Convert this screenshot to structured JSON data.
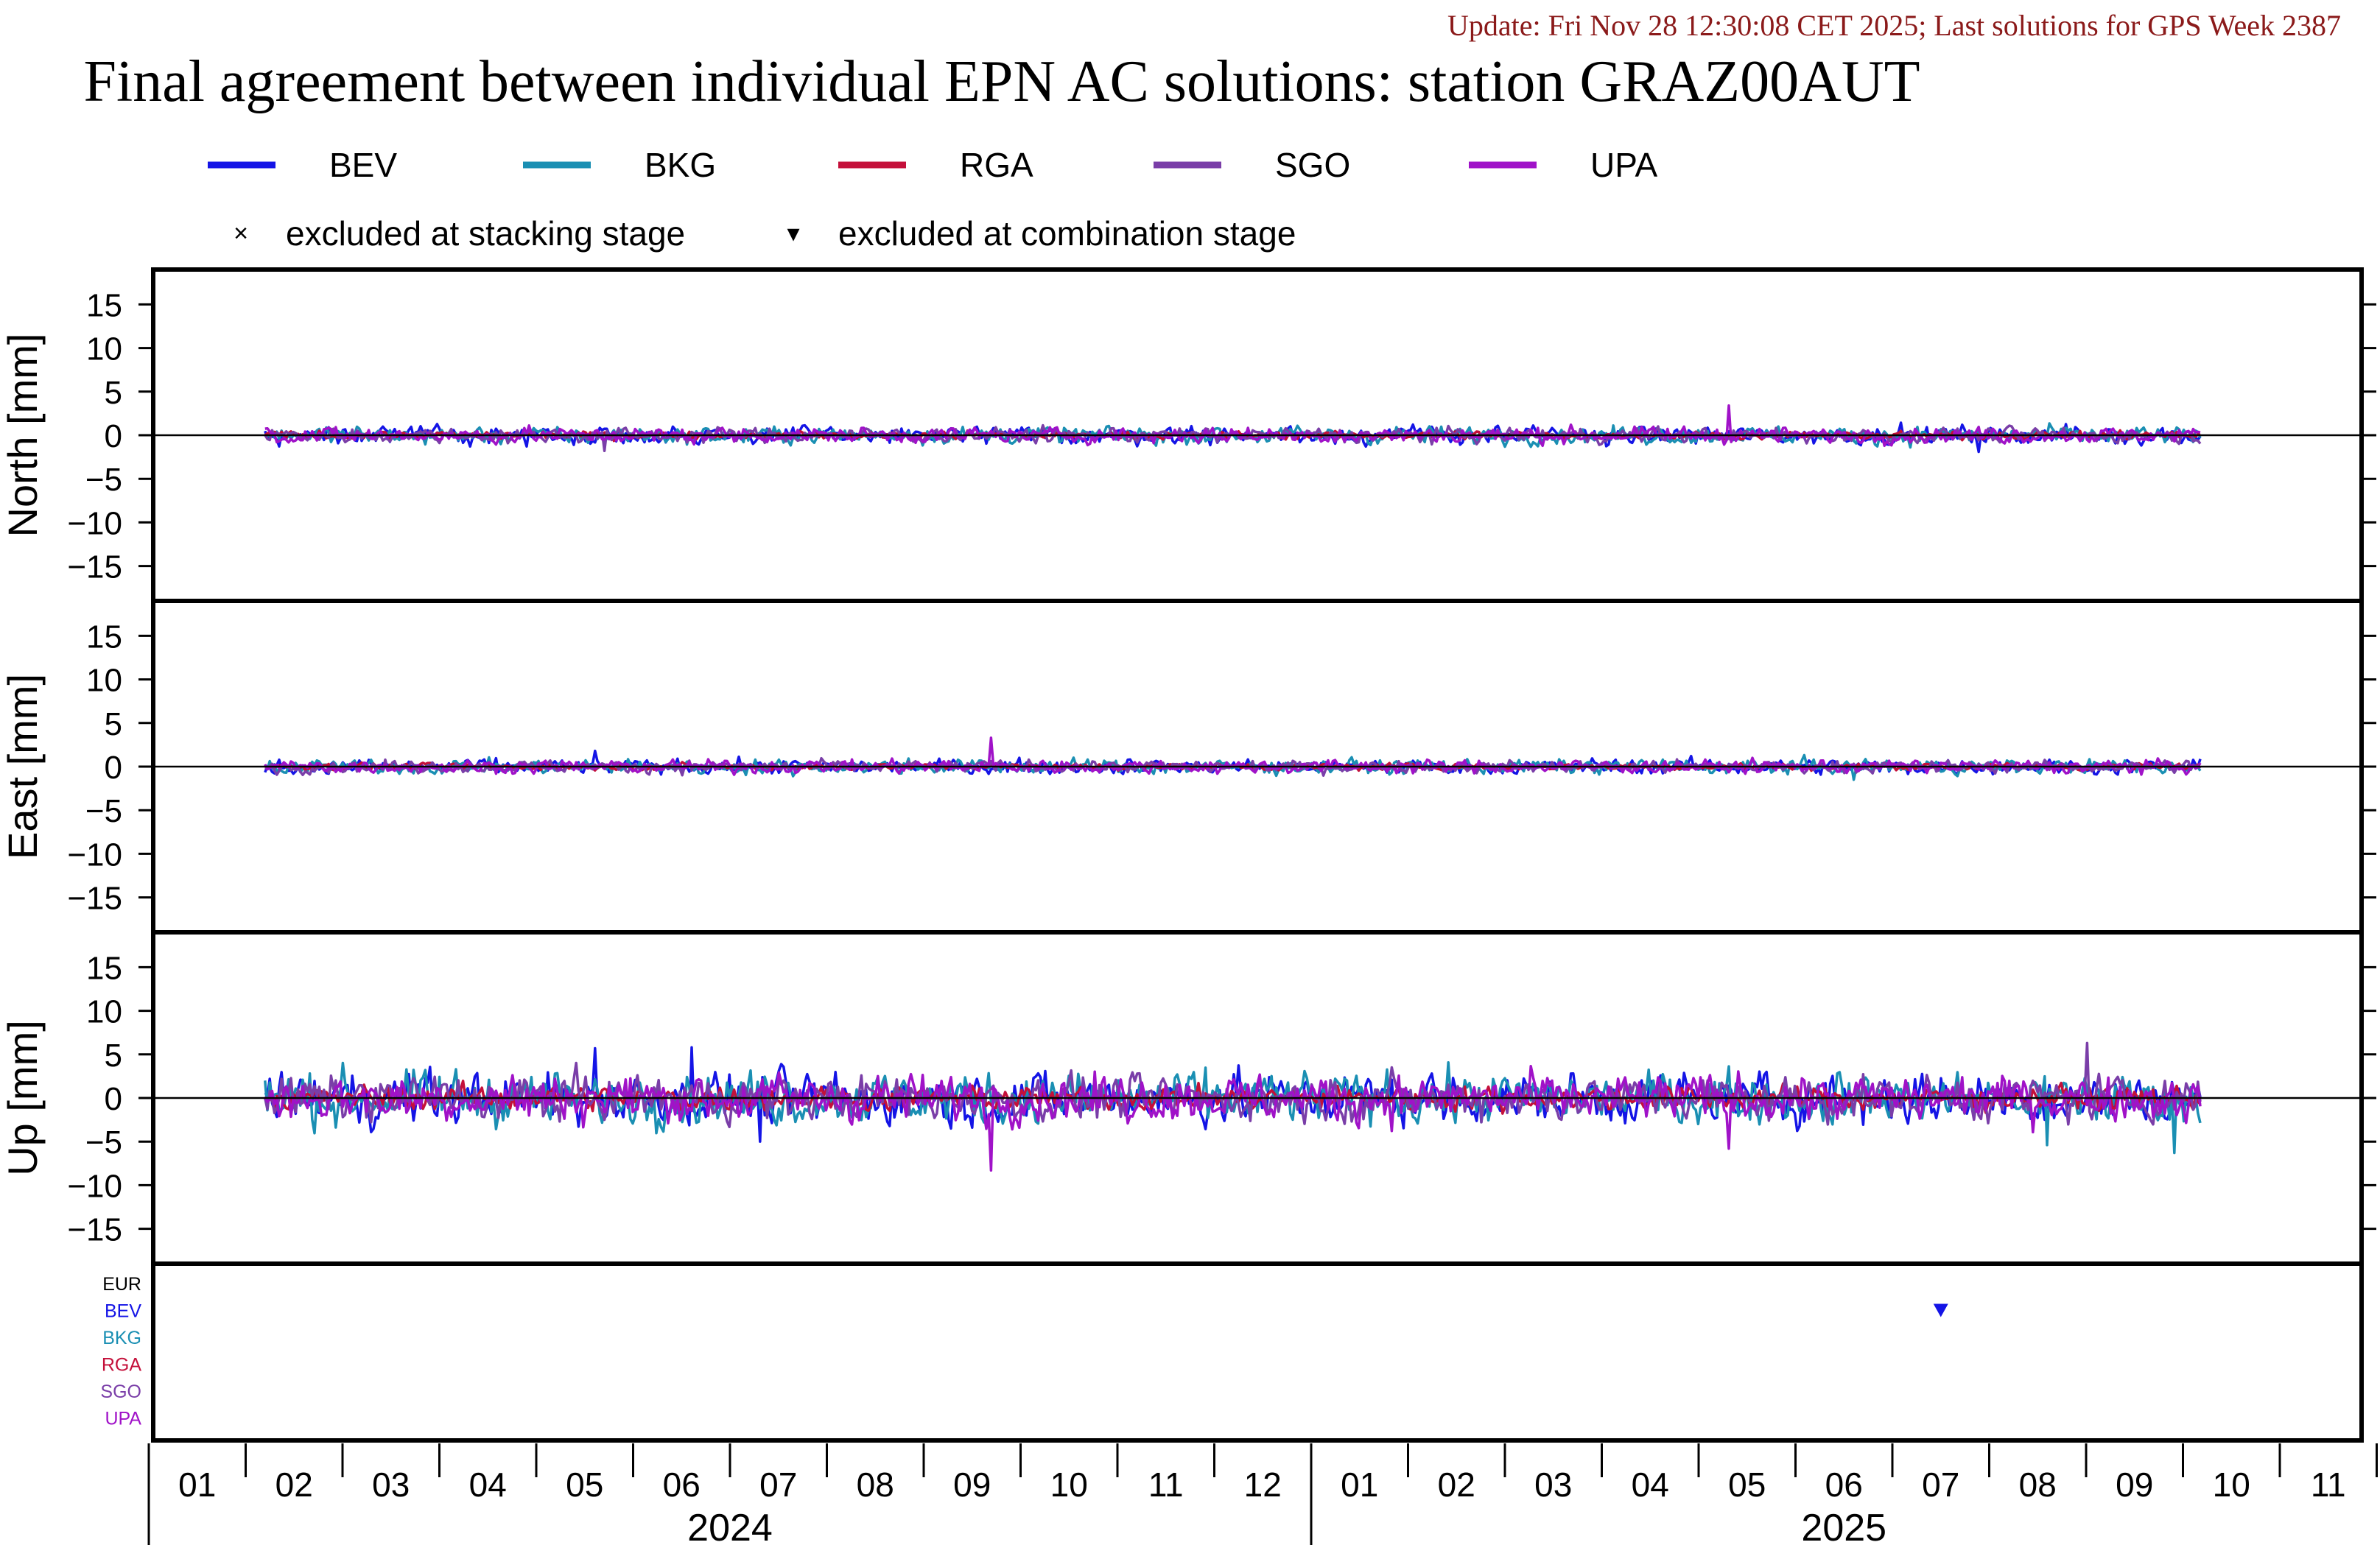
{
  "header": {
    "update_line": "Update: Fri Nov 28 12:30:08 CET 2025; Last solutions for GPS Week 2387",
    "title": "Final agreement between individual EPN AC solutions: station GRAZ00AUT",
    "update_color": "#8b1a1a"
  },
  "legend": {
    "series": [
      {
        "name": "BEV",
        "color": "#1414e6"
      },
      {
        "name": "BKG",
        "color": "#1a8fb3"
      },
      {
        "name": "RGA",
        "color": "#c4103a"
      },
      {
        "name": "SGO",
        "color": "#7a3ea8"
      },
      {
        "name": "UPA",
        "color": "#a012c8"
      }
    ],
    "markers": [
      {
        "symbol": "×",
        "label": "excluded at stacking stage"
      },
      {
        "symbol": "▾",
        "label": "excluded at combination stage"
      }
    ]
  },
  "chart_data": {
    "type": "line",
    "panels": [
      {
        "ylabel": "North [mm]",
        "ylim": [
          -19,
          19
        ],
        "yticks": [
          15,
          10,
          5,
          0,
          -5,
          -10,
          -15
        ],
        "ytick_labels": [
          "15",
          "10",
          "5",
          "0",
          "−5",
          "−10",
          "−15"
        ],
        "amplitude": 0.6,
        "spikes": [
          {
            "series": "UPA",
            "month": 16.3,
            "value": 3.4
          },
          {
            "series": "SGO",
            "month": 4.7,
            "value": -1.8
          },
          {
            "series": "BEV",
            "month": 18.9,
            "value": -1.9
          }
        ]
      },
      {
        "ylabel": "East [mm]",
        "ylim": [
          -19,
          19
        ],
        "yticks": [
          15,
          10,
          5,
          0,
          -5,
          -10,
          -15
        ],
        "ytick_labels": [
          "15",
          "10",
          "5",
          "0",
          "−5",
          "−10",
          "−15"
        ],
        "amplitude": 0.5,
        "spikes": [
          {
            "series": "UPA",
            "month": 8.7,
            "value": 3.3
          },
          {
            "series": "BEV",
            "month": 4.6,
            "value": 1.8
          },
          {
            "series": "BKG",
            "month": 17.6,
            "value": -1.5
          }
        ]
      },
      {
        "ylabel": "Up [mm]",
        "ylim": [
          -19,
          19
        ],
        "yticks": [
          15,
          10,
          5,
          0,
          -5,
          -10,
          -15
        ],
        "ytick_labels": [
          "15",
          "10",
          "5",
          "0",
          "−5",
          "−10",
          "−15"
        ],
        "amplitude": 1.8,
        "spikes": [
          {
            "series": "UPA",
            "month": 8.7,
            "value": -8.3
          },
          {
            "series": "BEV",
            "month": 4.6,
            "value": 5.7
          },
          {
            "series": "BEV",
            "month": 5.6,
            "value": 5.8
          },
          {
            "series": "UPA",
            "month": 16.3,
            "value": -5.8
          },
          {
            "series": "BKG",
            "month": 20.9,
            "value": -6.3
          },
          {
            "series": "SGO",
            "month": 20.0,
            "value": 6.3
          },
          {
            "series": "BEV",
            "month": 6.3,
            "value": -5.0
          },
          {
            "series": "BKG",
            "month": 19.6,
            "value": -5.4
          }
        ]
      }
    ],
    "series_order": [
      "BEV",
      "BKG",
      "RGA",
      "SGO",
      "UPA"
    ],
    "x_start_month": 1.2,
    "x_end_month": 21.2,
    "excluded_panel": {
      "labels": [
        {
          "text": "EUR",
          "color": "#000000"
        },
        {
          "text": "BEV",
          "color": "#1414e6"
        },
        {
          "text": "BKG",
          "color": "#1a8fb3"
        },
        {
          "text": "RGA",
          "color": "#c4103a"
        },
        {
          "text": "SGO",
          "color": "#7a3ea8"
        },
        {
          "text": "UPA",
          "color": "#a012c8"
        }
      ],
      "points": [
        {
          "series": "BEV",
          "month": 18.5,
          "stage": "combination"
        }
      ]
    },
    "x_axis": {
      "month_labels": [
        "01",
        "02",
        "03",
        "04",
        "05",
        "06",
        "07",
        "08",
        "09",
        "10",
        "11",
        "12",
        "01",
        "02",
        "03",
        "04",
        "05",
        "06",
        "07",
        "08",
        "09",
        "10",
        "11"
      ],
      "years": [
        {
          "label": "2024",
          "center_month": 6.0
        },
        {
          "label": "2025",
          "center_month": 17.5
        }
      ],
      "year_separator_month": 12.0
    }
  }
}
